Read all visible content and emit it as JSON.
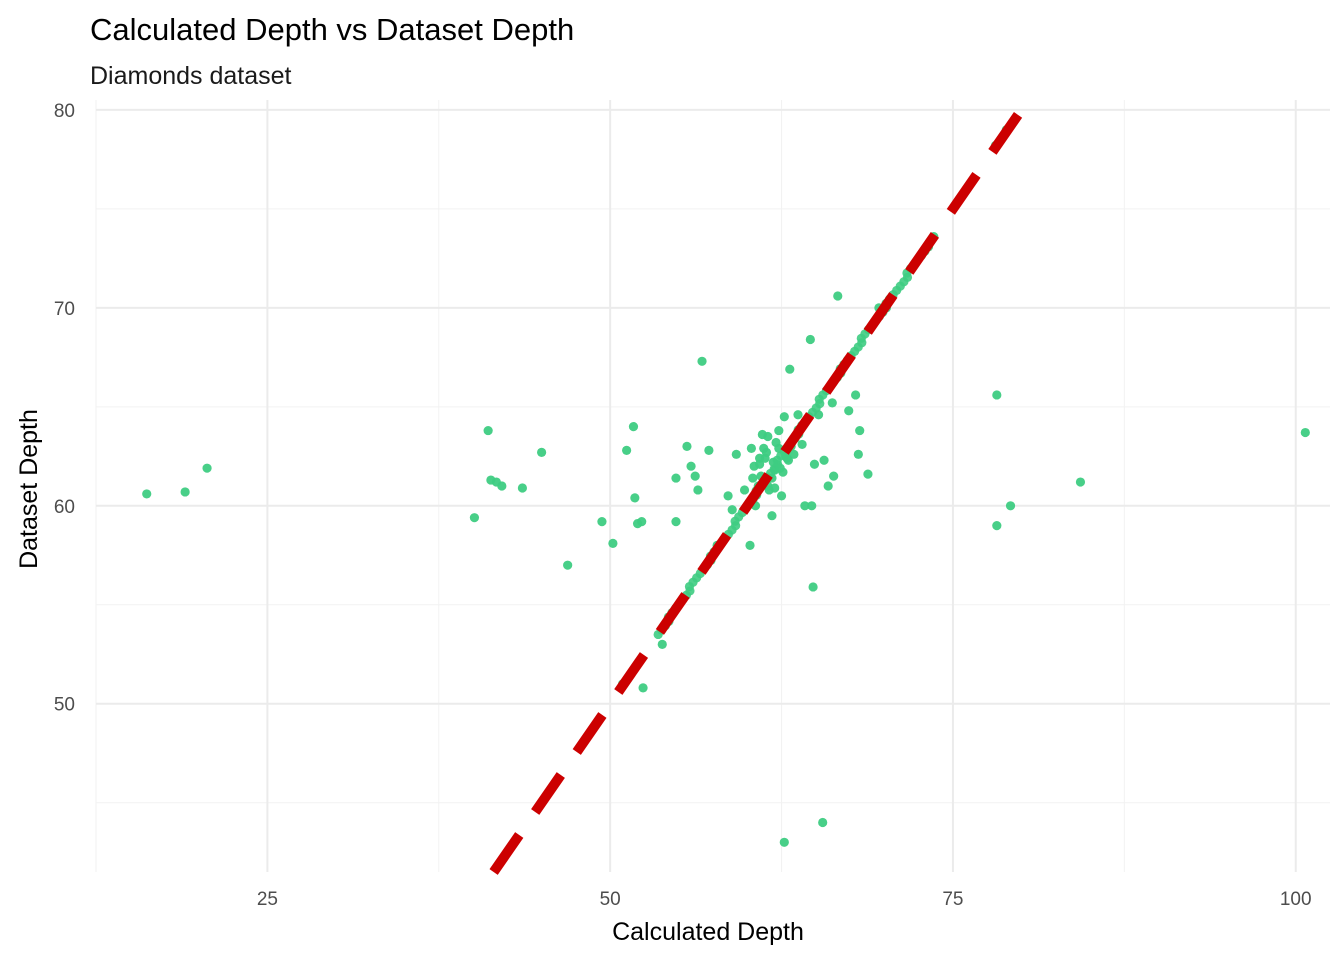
{
  "chart_data": {
    "type": "scatter",
    "title": "Calculated Depth vs Dataset Depth",
    "subtitle": "Diamonds dataset",
    "xlabel": "Calculated Depth",
    "ylabel": "Dataset Depth",
    "xlim": [
      12.5,
      102.5
    ],
    "ylim": [
      41.5,
      80.5
    ],
    "x_ticks": [
      25,
      50,
      75,
      100
    ],
    "y_ticks": [
      50,
      60,
      70,
      80
    ],
    "grid": true,
    "legend": "none",
    "point_color": "#3ECC82",
    "reference_line": {
      "slope": 1,
      "intercept": 0,
      "style": "dashed",
      "color": "#CC0000"
    },
    "points": [
      [
        16.2,
        60.6
      ],
      [
        19.0,
        60.7
      ],
      [
        20.6,
        61.9
      ],
      [
        40.1,
        59.4
      ],
      [
        41.1,
        63.8
      ],
      [
        41.3,
        61.3
      ],
      [
        41.7,
        61.2
      ],
      [
        42.1,
        61.0
      ],
      [
        43.6,
        60.9
      ],
      [
        45.0,
        62.7
      ],
      [
        46.9,
        57.0
      ],
      [
        49.4,
        59.2
      ],
      [
        50.2,
        58.1
      ],
      [
        50.9,
        51.0
      ],
      [
        51.2,
        62.8
      ],
      [
        51.7,
        64.0
      ],
      [
        51.8,
        60.4
      ],
      [
        52.0,
        59.1
      ],
      [
        52.3,
        59.2
      ],
      [
        52.4,
        50.8
      ],
      [
        53.8,
        53.0
      ],
      [
        54.8,
        59.2
      ],
      [
        54.8,
        61.4
      ],
      [
        55.6,
        63.0
      ],
      [
        55.9,
        62.0
      ],
      [
        56.2,
        61.5
      ],
      [
        56.4,
        60.8
      ],
      [
        56.7,
        67.3
      ],
      [
        57.2,
        62.8
      ],
      [
        57.8,
        58.0
      ],
      [
        58.6,
        60.5
      ],
      [
        58.9,
        59.8
      ],
      [
        59.2,
        62.6
      ],
      [
        59.8,
        60.8
      ],
      [
        60.2,
        58.0
      ],
      [
        60.4,
        61.4
      ],
      [
        60.3,
        62.9
      ],
      [
        60.6,
        60.0
      ],
      [
        60.9,
        62.1
      ],
      [
        61.1,
        63.6
      ],
      [
        61.3,
        62.4
      ],
      [
        61.5,
        61.0
      ],
      [
        61.8,
        59.5
      ],
      [
        62.0,
        61.8
      ],
      [
        62.3,
        63.8
      ],
      [
        62.5,
        60.5
      ],
      [
        62.7,
        64.5
      ],
      [
        62.9,
        62.4
      ],
      [
        63.1,
        66.9
      ],
      [
        63.4,
        62.6
      ],
      [
        63.7,
        64.6
      ],
      [
        64.0,
        63.1
      ],
      [
        64.2,
        60.0
      ],
      [
        64.6,
        68.4
      ],
      [
        64.7,
        60.0
      ],
      [
        64.8,
        55.9
      ],
      [
        64.9,
        62.1
      ],
      [
        65.2,
        64.6
      ],
      [
        65.6,
        62.3
      ],
      [
        65.9,
        61.0
      ],
      [
        66.2,
        65.2
      ],
      [
        66.3,
        61.5
      ],
      [
        66.6,
        70.6
      ],
      [
        67.4,
        64.8
      ],
      [
        67.9,
        65.6
      ],
      [
        68.1,
        62.6
      ],
      [
        68.2,
        63.8
      ],
      [
        68.8,
        61.6
      ],
      [
        69.6,
        70.0
      ],
      [
        70.1,
        70.1
      ],
      [
        73.6,
        73.6
      ],
      [
        78.1,
        78.2
      ],
      [
        78.2,
        65.6
      ],
      [
        78.2,
        59.0
      ],
      [
        79.2,
        60.0
      ],
      [
        84.3,
        61.2
      ],
      [
        100.7,
        63.7
      ],
      [
        62.7,
        43.0
      ],
      [
        65.5,
        44.0
      ],
      [
        78.9,
        79.0
      ]
    ]
  }
}
